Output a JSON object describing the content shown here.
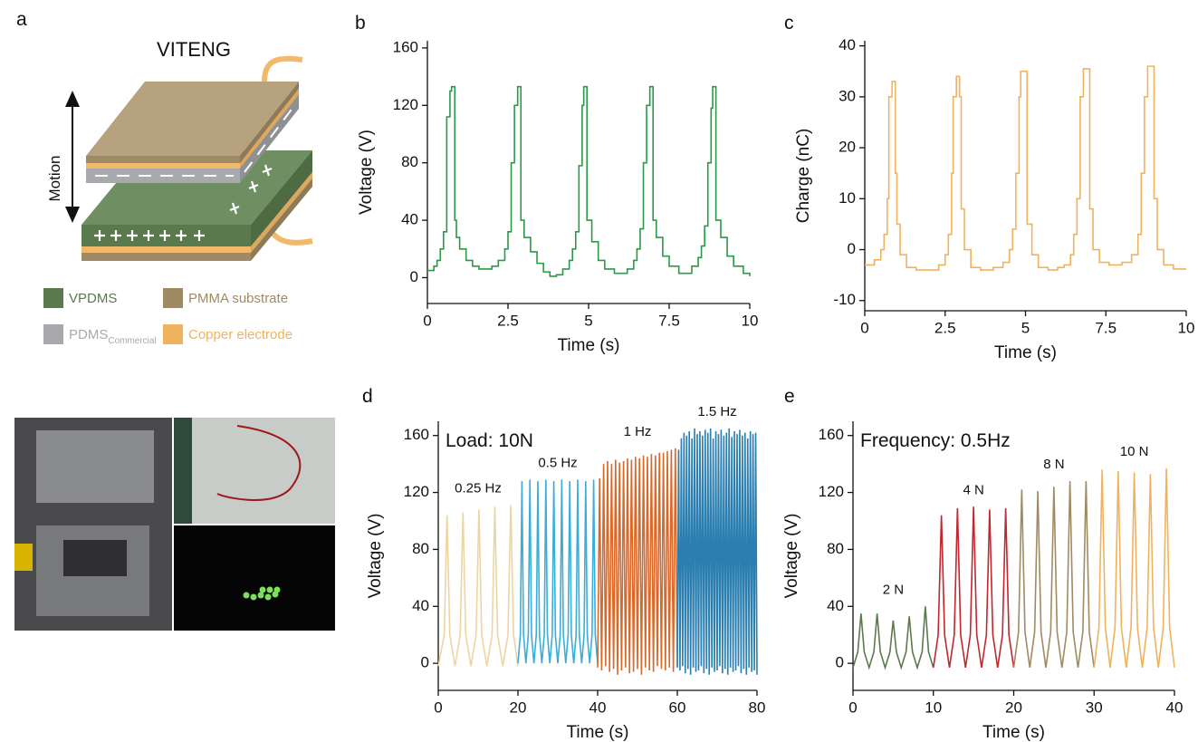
{
  "panel_a": {
    "label": "a",
    "title": "VITENG",
    "motion": "Motion",
    "legend": [
      {
        "name": "VPDMS",
        "color": "#5a7a4e"
      },
      {
        "name": "PMMA substrate",
        "color": "#a08a62"
      },
      {
        "name": "PDMS",
        "subscript": "Commercial",
        "color": "#a7a9ac"
      },
      {
        "name": "Copper electrode",
        "color": "#f0b25e"
      }
    ]
  },
  "chart_data": [
    {
      "type": "line",
      "panel": "b",
      "step": true,
      "color": "#2a9a48",
      "xlabel": "Time (s)",
      "ylabel": "Voltage (V)",
      "xlim": [
        0,
        10
      ],
      "ylim": [
        -18,
        165
      ],
      "xticks": [
        0,
        2.5,
        5,
        7.5,
        10
      ],
      "yticks": [
        0,
        40,
        80,
        120,
        160
      ],
      "x": [
        0,
        0.2,
        0.3,
        0.4,
        0.5,
        0.6,
        0.7,
        0.75,
        0.85,
        0.9,
        1.0,
        1.2,
        1.4,
        1.6,
        1.8,
        2.0,
        2.2,
        2.4,
        2.5,
        2.6,
        2.7,
        2.8,
        2.9,
        3.0,
        3.2,
        3.4,
        3.6,
        3.8,
        4.0,
        4.2,
        4.4,
        4.5,
        4.6,
        4.7,
        4.8,
        4.85,
        4.95,
        5.1,
        5.3,
        5.5,
        5.8,
        6.0,
        6.2,
        6.4,
        6.5,
        6.6,
        6.7,
        6.8,
        6.9,
        7.0,
        7.1,
        7.3,
        7.5,
        7.8,
        8.0,
        8.2,
        8.4,
        8.5,
        8.6,
        8.7,
        8.8,
        8.85,
        8.95,
        9.1,
        9.3,
        9.5,
        9.8,
        10
      ],
      "values": [
        5,
        8,
        12,
        20,
        32,
        112,
        130,
        133,
        40,
        28,
        20,
        12,
        8,
        6,
        6,
        8,
        12,
        20,
        32,
        80,
        120,
        133,
        40,
        28,
        18,
        10,
        4,
        1,
        2,
        6,
        12,
        20,
        32,
        78,
        120,
        133,
        40,
        25,
        12,
        6,
        3,
        3,
        6,
        12,
        20,
        34,
        80,
        120,
        133,
        40,
        28,
        15,
        8,
        3,
        3,
        8,
        14,
        22,
        36,
        80,
        118,
        133,
        40,
        28,
        15,
        8,
        3,
        1
      ]
    },
    {
      "type": "line",
      "panel": "c",
      "step": true,
      "color": "#f0b25e",
      "xlabel": "Time (s)",
      "ylabel": "Charge (nC)",
      "xlim": [
        0,
        10
      ],
      "ylim": [
        -12,
        41
      ],
      "xticks": [
        0,
        2.5,
        5,
        7.5,
        10
      ],
      "yticks": [
        -10,
        0,
        10,
        20,
        30,
        40
      ],
      "x": [
        0,
        0.3,
        0.5,
        0.6,
        0.7,
        0.75,
        0.85,
        0.95,
        1.0,
        1.1,
        1.3,
        1.6,
        2.0,
        2.3,
        2.5,
        2.6,
        2.7,
        2.75,
        2.85,
        2.95,
        3.0,
        3.1,
        3.3,
        3.6,
        4.0,
        4.3,
        4.5,
        4.6,
        4.7,
        4.8,
        4.85,
        5.0,
        5.05,
        5.2,
        5.4,
        5.7,
        6.0,
        6.2,
        6.4,
        6.5,
        6.6,
        6.7,
        6.8,
        6.95,
        7.0,
        7.1,
        7.3,
        7.6,
        8.0,
        8.3,
        8.5,
        8.6,
        8.7,
        8.8,
        8.95,
        9.0,
        9.1,
        9.3,
        9.6,
        10
      ],
      "values": [
        -3,
        -2,
        0,
        3,
        10,
        30,
        33,
        15,
        5,
        -1,
        -3.5,
        -4,
        -4,
        -3,
        -1,
        3,
        15,
        30,
        34,
        30,
        8,
        0,
        -3.5,
        -4,
        -3.5,
        -2.5,
        0,
        4,
        15,
        30,
        35,
        35,
        5,
        -1,
        -3.5,
        -4,
        -3.5,
        -3,
        -1,
        3,
        10,
        30,
        35.5,
        35.5,
        8,
        0,
        -2.5,
        -3,
        -2.5,
        -1,
        3,
        15,
        30,
        36,
        36,
        10,
        0,
        -3,
        -3.8,
        -3.8
      ]
    },
    {
      "type": "line",
      "panel": "d",
      "annotation": "Load: 10N",
      "xlabel": "Time (s)",
      "ylabel": "Voltage (V)",
      "xlim": [
        0,
        80
      ],
      "ylim": [
        -19,
        170
      ],
      "xticks": [
        0,
        20,
        40,
        60,
        80
      ],
      "yticks": [
        0,
        40,
        80,
        120,
        160
      ],
      "series": [
        {
          "name": "0.25 Hz",
          "color": "#edd5a3",
          "x": [
            0,
            1.5,
            2.2,
            2.9,
            4.2,
            5.5,
            6.2,
            6.9,
            8.2,
            9.5,
            10.2,
            10.9,
            12.2,
            13.5,
            14.2,
            14.9,
            16.2,
            17.5,
            18.2,
            18.9,
            20
          ],
          "values": [
            -2,
            20,
            104,
            20,
            -2,
            20,
            106,
            20,
            -2,
            20,
            108,
            20,
            -2,
            20,
            110,
            20,
            -2,
            20,
            111,
            20,
            -2
          ]
        },
        {
          "name": "0.5 Hz",
          "color": "#3aaed8",
          "x": [
            20,
            20.6,
            21,
            21.4,
            22,
            22.6,
            23,
            23.4,
            24,
            24.6,
            25,
            25.4,
            26,
            26.6,
            27,
            27.4,
            28,
            28.6,
            29,
            29.4,
            30,
            30.6,
            31,
            31.4,
            32,
            32.6,
            33,
            33.4,
            34,
            34.6,
            35,
            35.4,
            36,
            36.6,
            37,
            37.4,
            38,
            38.6,
            39,
            39.4,
            40
          ],
          "values": [
            0,
            20,
            128,
            20,
            0,
            20,
            129,
            20,
            0,
            20,
            128,
            20,
            0,
            20,
            129,
            20,
            0,
            20,
            128,
            20,
            0,
            20,
            129,
            20,
            0,
            20,
            128,
            20,
            0,
            20,
            129,
            20,
            0,
            20,
            128,
            20,
            0,
            20,
            129,
            20,
            0
          ]
        },
        {
          "name": "1 Hz",
          "color": "#d9692a",
          "x": [
            40,
            40.5,
            41,
            41.5,
            42,
            42.5,
            43,
            43.5,
            44,
            44.5,
            45,
            45.5,
            46,
            46.5,
            47,
            47.5,
            48,
            48.5,
            49,
            49.5,
            50,
            50.5,
            51,
            51.5,
            52,
            52.5,
            53,
            53.5,
            54,
            54.5,
            55,
            55.5,
            56,
            56.5,
            57,
            57.5,
            58,
            58.5,
            59,
            59.5,
            60
          ],
          "values": [
            -3,
            130,
            -5,
            140,
            -2,
            142,
            -6,
            140,
            -4,
            143,
            -8,
            141,
            -5,
            142,
            -3,
            144,
            -7,
            143,
            -6,
            145,
            -4,
            144,
            -8,
            146,
            -3,
            145,
            -5,
            147,
            -6,
            146,
            -2,
            148,
            -4,
            148,
            -5,
            149,
            -3,
            150,
            -6,
            151,
            -2
          ]
        },
        {
          "name": "1.5 Hz",
          "color": "#2b7fb0",
          "x": [
            60,
            60.33,
            60.67,
            61,
            61.33,
            61.67,
            62,
            62.33,
            62.67,
            63,
            63.33,
            63.67,
            64,
            64.33,
            64.67,
            65,
            65.33,
            65.67,
            66,
            66.33,
            66.67,
            67,
            67.33,
            67.67,
            68,
            68.33,
            68.67,
            69,
            69.33,
            69.67,
            70,
            70.33,
            70.67,
            71,
            71.33,
            71.67,
            72,
            72.33,
            72.67,
            73,
            73.33,
            73.67,
            74,
            74.33,
            74.67,
            75,
            75.33,
            75.67,
            76,
            76.33,
            76.67,
            77,
            77.33,
            77.67,
            78,
            78.33,
            78.67,
            79,
            79.33,
            79.67,
            80
          ],
          "values": [
            -3,
            150,
            -5,
            158,
            -2,
            162,
            -7,
            160,
            -4,
            163,
            -8,
            158,
            -3,
            165,
            -6,
            161,
            -5,
            163,
            -2,
            160,
            -7,
            164,
            -4,
            162,
            -8,
            165,
            -3,
            158,
            -6,
            163,
            -5,
            161,
            -2,
            164,
            -7,
            160,
            -4,
            162,
            -8,
            165,
            -3,
            159,
            -6,
            163,
            -5,
            161,
            -2,
            164,
            -7,
            160,
            -4,
            162,
            -8,
            158,
            -3,
            163,
            -6,
            161,
            -5,
            162,
            -8
          ]
        }
      ]
    },
    {
      "type": "line",
      "panel": "e",
      "annotation": "Frequency: 0.5Hz",
      "xlabel": "Time (s)",
      "ylabel": "Voltage (V)",
      "xlim": [
        0,
        40
      ],
      "ylim": [
        -19,
        170
      ],
      "xticks": [
        0,
        10,
        20,
        30,
        40
      ],
      "yticks": [
        0,
        40,
        80,
        120,
        160
      ],
      "series": [
        {
          "name": "2 N",
          "color": "#5a7a4e",
          "x": [
            0,
            0.6,
            1,
            1.4,
            2,
            2.6,
            3,
            3.4,
            4,
            4.6,
            5,
            5.4,
            6,
            6.6,
            7,
            7.4,
            8,
            8.6,
            9,
            9.4,
            10
          ],
          "values": [
            -3,
            8,
            35,
            8,
            -3,
            8,
            35,
            8,
            -3,
            8,
            30,
            8,
            -3,
            8,
            33,
            8,
            -3,
            8,
            40,
            8,
            -3
          ]
        },
        {
          "name": "4 N",
          "color": "#c1272d",
          "x": [
            10,
            10.6,
            11,
            11.4,
            12,
            12.6,
            13,
            13.4,
            14,
            14.6,
            15,
            15.4,
            16,
            16.6,
            17,
            17.4,
            18,
            18.6,
            19,
            19.4,
            20
          ],
          "values": [
            -3,
            20,
            104,
            20,
            -3,
            20,
            109,
            20,
            -3,
            20,
            110,
            20,
            -3,
            20,
            108,
            20,
            -3,
            20,
            109,
            20,
            -3
          ]
        },
        {
          "name": "8 N",
          "color": "#a08a62",
          "x": [
            20,
            20.6,
            21,
            21.4,
            22,
            22.6,
            23,
            23.4,
            24,
            24.6,
            25,
            25.4,
            26,
            26.6,
            27,
            27.4,
            28,
            28.6,
            29,
            29.4,
            30
          ],
          "values": [
            -3,
            22,
            122,
            22,
            -3,
            22,
            121,
            22,
            -3,
            22,
            124,
            22,
            -3,
            22,
            128,
            22,
            -3,
            22,
            128,
            22,
            -3
          ]
        },
        {
          "name": "10 N",
          "color": "#f0b25e",
          "x": [
            30,
            30.6,
            31,
            31.4,
            32,
            32.6,
            33,
            33.4,
            34,
            34.6,
            35,
            35.4,
            36,
            36.6,
            37,
            37.4,
            38,
            38.6,
            39,
            39.4,
            40
          ],
          "values": [
            -3,
            25,
            136,
            25,
            -3,
            25,
            135,
            25,
            -3,
            25,
            134,
            25,
            -3,
            25,
            133,
            25,
            -3,
            25,
            137,
            25,
            -3
          ]
        }
      ]
    }
  ]
}
